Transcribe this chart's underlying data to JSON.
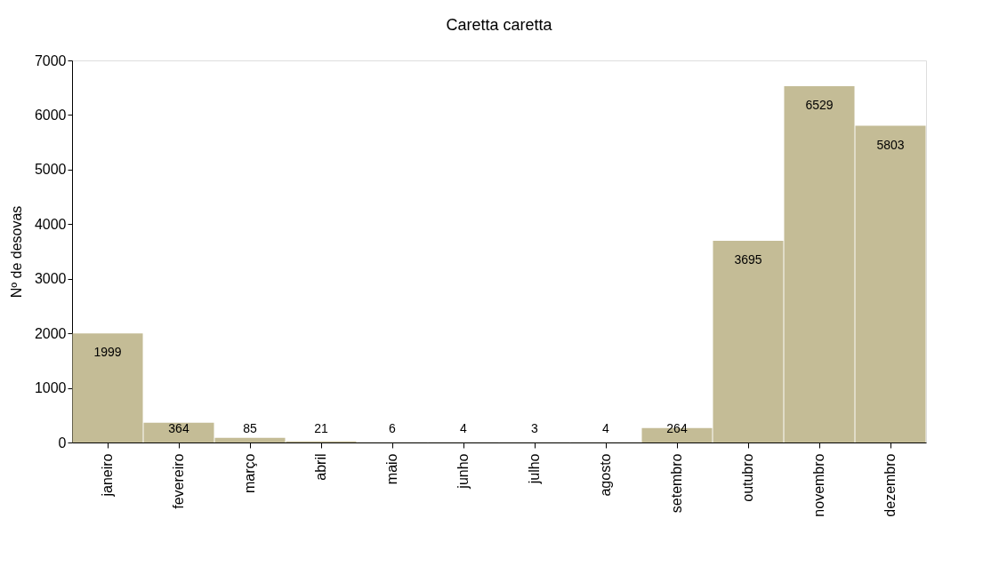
{
  "chart_data": {
    "type": "bar",
    "title": "Caretta caretta",
    "ylabel": "Nº de desovas",
    "categories": [
      "janeiro",
      "fevereiro",
      "março",
      "abril",
      "maio",
      "junho",
      "julho",
      "agosto",
      "setembro",
      "outubro",
      "novembro",
      "dezembro"
    ],
    "values": [
      1999,
      364,
      85,
      21,
      6,
      4,
      3,
      4,
      264,
      3695,
      6529,
      5803
    ],
    "color": "#c4bc96",
    "ylim": [
      0,
      7000
    ],
    "yticks": [
      0,
      1000,
      2000,
      3000,
      4000,
      5000,
      6000,
      7000
    ],
    "grid": false,
    "data_labels": true
  }
}
